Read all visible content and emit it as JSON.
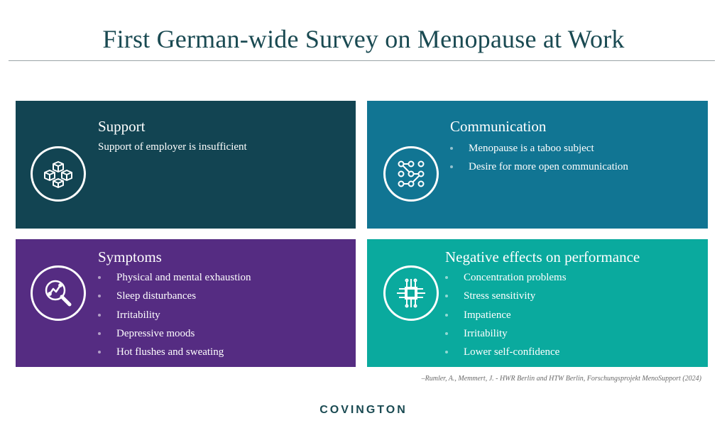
{
  "title": "First German-wide Survey on Menopause at Work",
  "cards": {
    "support": {
      "heading": "Support",
      "text": "Support of employer is insufficient",
      "icon": "blocks-network-icon",
      "color": "#124452"
    },
    "communication": {
      "heading": "Communication",
      "items": [
        "Menopause is a taboo subject",
        "Desire for more open communication"
      ],
      "icon": "node-graph-icon",
      "color": "#117593"
    },
    "symptoms": {
      "heading": "Symptoms",
      "items": [
        "Physical and mental exhaustion",
        "Sleep disturbances",
        "Irritability",
        "Depressive moods",
        "Hot flushes and sweating"
      ],
      "icon": "search-analytics-icon",
      "color": "#552c82"
    },
    "negative": {
      "heading": "Negative effects on performance",
      "items": [
        "Concentration problems",
        "Stress sensitivity",
        "Impatience",
        "Irritability",
        "Lower self-confidence"
      ],
      "icon": "chip-icon",
      "color": "#0aaa9e"
    }
  },
  "citation": "–Rumler, A., Memmert, J. - HWR Berlin and HTW Berlin, Forschungsprojekt MenoSupport (2024)",
  "brand": "COVINGTON"
}
